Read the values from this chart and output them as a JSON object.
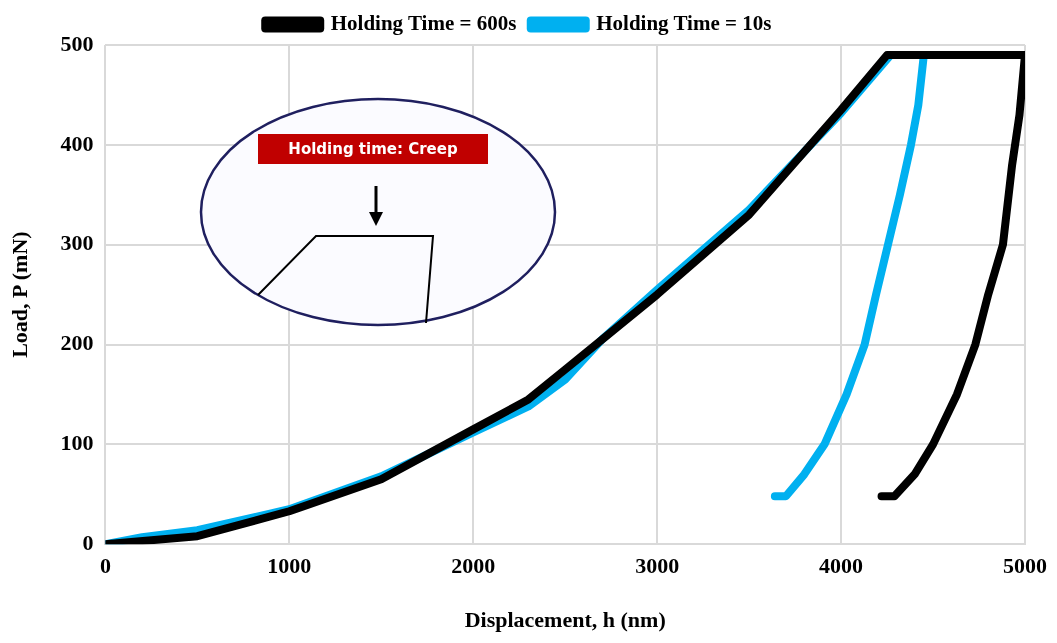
{
  "chart_data": {
    "type": "line",
    "xlabel": "Displacement, h (nm)",
    "ylabel": "Load, P (mN)",
    "xlim": [
      0,
      5000
    ],
    "xticks": [
      0,
      1000,
      2000,
      3000,
      4000,
      5000
    ],
    "ylim": [
      0,
      500
    ],
    "yticks": [
      0,
      100,
      200,
      300,
      400,
      500
    ],
    "grid": true,
    "legend": "top",
    "marker": "none",
    "line_style": "solid",
    "annotations": [
      "Holding time: Creep"
    ],
    "series": [
      {
        "name": "Holding Time = 600s",
        "color": "#000000",
        "x": [
          0,
          500,
          1000,
          1500,
          2000,
          2300,
          2500,
          2700,
          3000,
          3500,
          4000,
          4250,
          5000,
          4970,
          4930,
          4880,
          4800,
          4730,
          4630,
          4500,
          4400,
          4290,
          4220
        ],
        "values": [
          0,
          8,
          33,
          65,
          115,
          145,
          175,
          205,
          250,
          330,
          435,
          490,
          490,
          430,
          380,
          300,
          250,
          200,
          150,
          100,
          70,
          48,
          48
        ]
      },
      {
        "name": "Holding Time = 10s",
        "color": "#00b0f0",
        "x": [
          0,
          200,
          500,
          1000,
          1500,
          2000,
          2300,
          2500,
          2700,
          3000,
          3500,
          4000,
          4270,
          4450,
          4420,
          4380,
          4320,
          4255,
          4190,
          4128,
          4030,
          3910,
          3800,
          3700,
          3640
        ],
        "values": [
          0,
          7,
          14,
          35,
          68,
          112,
          138,
          165,
          205,
          255,
          335,
          432,
          490,
          490,
          440,
          400,
          350,
          300,
          250,
          200,
          150,
          100,
          70,
          48,
          48
        ]
      }
    ]
  }
}
